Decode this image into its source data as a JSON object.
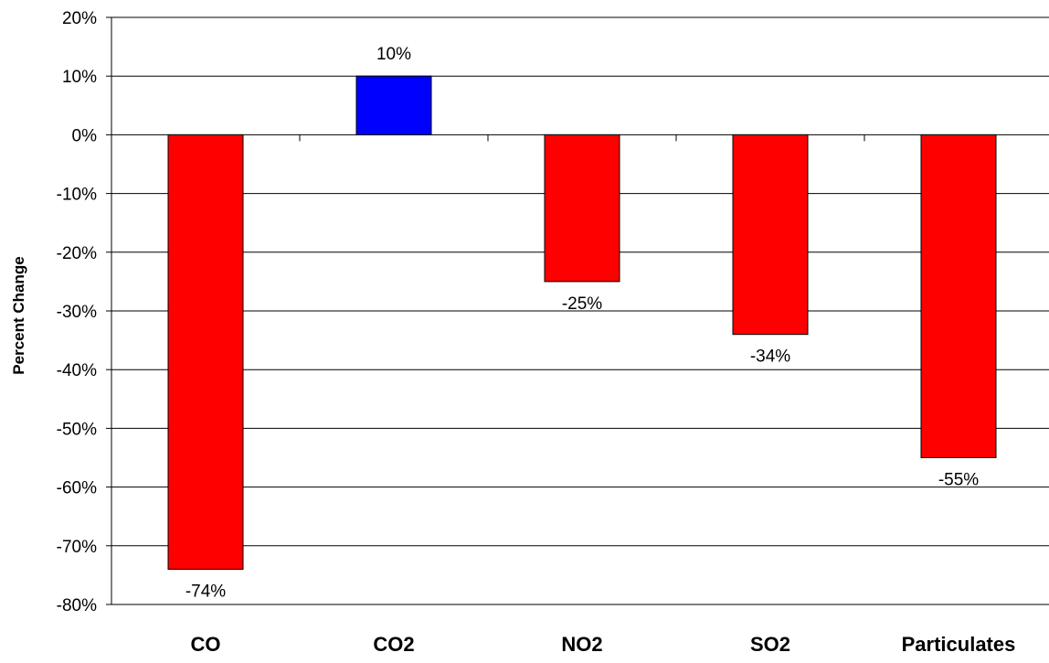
{
  "chart_data": {
    "type": "bar",
    "title": "",
    "xlabel": "",
    "ylabel": "Percent Change",
    "ylim": [
      -80,
      20
    ],
    "ytick_step": 10,
    "ytick_labels": [
      "20%",
      "10%",
      "0%",
      "-10%",
      "-20%",
      "-30%",
      "-40%",
      "-50%",
      "-60%",
      "-70%",
      "-80%"
    ],
    "grid": true,
    "legend": "none",
    "categories": [
      "CO",
      "CO2",
      "NO2",
      "SO2",
      "Particulates"
    ],
    "values": [
      -74,
      10,
      -25,
      -34,
      -55
    ],
    "data_labels": [
      "-74%",
      "10%",
      "-25%",
      "-34%",
      "-55%"
    ],
    "colors": {
      "positive": "#0000ff",
      "negative": "#ff0000",
      "grid": "#000000",
      "axis": "#000000"
    }
  }
}
